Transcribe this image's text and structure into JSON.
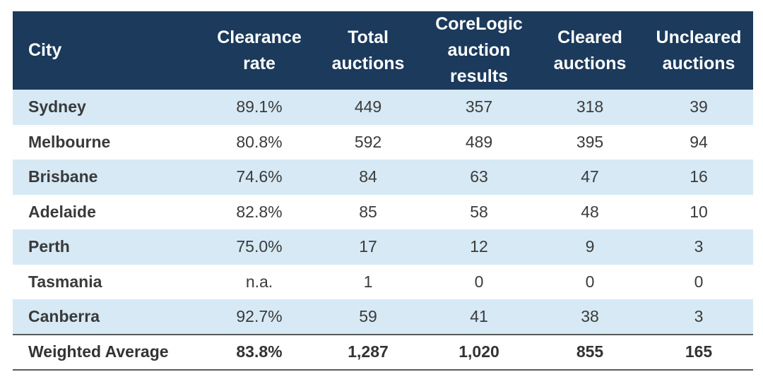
{
  "table": {
    "headers": {
      "city": "City",
      "clearance_rate": [
        "Clearance",
        "rate"
      ],
      "total_auctions": [
        "Total",
        "auctions"
      ],
      "corelogic_results": [
        "CoreLogic",
        "auction",
        "results"
      ],
      "cleared_auctions": [
        "Cleared",
        "auctions"
      ],
      "uncleared_auctions": [
        "Uncleared",
        "auctions"
      ]
    },
    "rows": [
      {
        "city": "Sydney",
        "clearance_rate": "89.1%",
        "total_auctions": "449",
        "corelogic_results": "357",
        "cleared": "318",
        "uncleared": "39"
      },
      {
        "city": "Melbourne",
        "clearance_rate": "80.8%",
        "total_auctions": "592",
        "corelogic_results": "489",
        "cleared": "395",
        "uncleared": "94"
      },
      {
        "city": "Brisbane",
        "clearance_rate": "74.6%",
        "total_auctions": "84",
        "corelogic_results": "63",
        "cleared": "47",
        "uncleared": "16"
      },
      {
        "city": "Adelaide",
        "clearance_rate": "82.8%",
        "total_auctions": "85",
        "corelogic_results": "58",
        "cleared": "48",
        "uncleared": "10"
      },
      {
        "city": "Perth",
        "clearance_rate": "75.0%",
        "total_auctions": "17",
        "corelogic_results": "12",
        "cleared": "9",
        "uncleared": "3"
      },
      {
        "city": "Tasmania",
        "clearance_rate": "n.a.",
        "total_auctions": "1",
        "corelogic_results": "0",
        "cleared": "0",
        "uncleared": "0"
      },
      {
        "city": "Canberra",
        "clearance_rate": "92.7%",
        "total_auctions": "59",
        "corelogic_results": "41",
        "cleared": "38",
        "uncleared": "3"
      }
    ],
    "total": {
      "city": "Weighted Average",
      "clearance_rate": "83.8%",
      "total_auctions": "1,287",
      "corelogic_results": "1,020",
      "cleared": "855",
      "uncleared": "165"
    }
  },
  "colors": {
    "header_bg": "#1b3a5c",
    "shaded_row": "#d6e9f5",
    "header_text": "#ffffff"
  }
}
